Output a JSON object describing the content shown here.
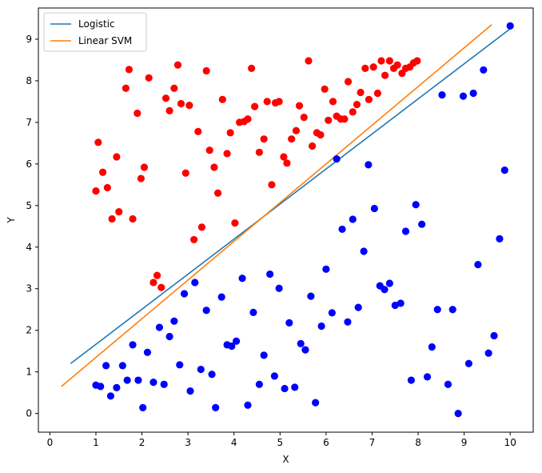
{
  "chart_data": {
    "type": "scatter",
    "xlabel": "X",
    "ylabel": "Y",
    "xlim": [
      -0.25,
      10.5
    ],
    "ylim": [
      -0.45,
      9.75
    ],
    "xticks": [
      0,
      1,
      2,
      3,
      4,
      5,
      6,
      7,
      8,
      9,
      10
    ],
    "yticks": [
      0,
      1,
      2,
      3,
      4,
      5,
      6,
      7,
      8,
      9
    ],
    "grid": false,
    "legend_position": "top-left",
    "lines": [
      {
        "name": "Logistic",
        "color": "#1f77b4",
        "x": [
          0.45,
          10.0
        ],
        "y": [
          1.2,
          9.25
        ]
      },
      {
        "name": "Linear SVM",
        "color": "#ff7f0e",
        "x": [
          0.25,
          9.6
        ],
        "y": [
          0.65,
          9.35
        ]
      }
    ],
    "scatter": [
      {
        "color": "#ff0000",
        "points": [
          [
            1.0,
            5.35
          ],
          [
            1.05,
            6.52
          ],
          [
            1.15,
            5.8
          ],
          [
            1.25,
            5.43
          ],
          [
            1.35,
            4.68
          ],
          [
            1.45,
            6.17
          ],
          [
            1.5,
            4.85
          ],
          [
            1.65,
            7.82
          ],
          [
            1.72,
            8.27
          ],
          [
            1.8,
            4.68
          ],
          [
            1.9,
            7.22
          ],
          [
            1.98,
            5.65
          ],
          [
            2.05,
            5.92
          ],
          [
            2.15,
            8.07
          ],
          [
            2.25,
            3.15
          ],
          [
            2.33,
            3.32
          ],
          [
            2.42,
            3.03
          ],
          [
            2.52,
            7.58
          ],
          [
            2.6,
            7.28
          ],
          [
            2.7,
            7.82
          ],
          [
            2.78,
            8.38
          ],
          [
            2.85,
            7.45
          ],
          [
            2.95,
            5.78
          ],
          [
            3.03,
            7.41
          ],
          [
            3.13,
            4.18
          ],
          [
            3.22,
            6.78
          ],
          [
            3.3,
            4.48
          ],
          [
            3.4,
            8.24
          ],
          [
            3.47,
            6.33
          ],
          [
            3.57,
            5.92
          ],
          [
            3.65,
            5.3
          ],
          [
            3.75,
            7.55
          ],
          [
            3.85,
            6.25
          ],
          [
            3.92,
            6.75
          ],
          [
            4.02,
            4.58
          ],
          [
            4.12,
            7.0
          ],
          [
            4.22,
            7.02
          ],
          [
            4.3,
            7.08
          ],
          [
            4.38,
            8.3
          ],
          [
            4.45,
            7.38
          ],
          [
            4.55,
            6.28
          ],
          [
            4.65,
            6.6
          ],
          [
            4.72,
            7.5
          ],
          [
            4.82,
            5.5
          ],
          [
            4.9,
            7.47
          ],
          [
            4.98,
            7.5
          ],
          [
            5.08,
            6.17
          ],
          [
            5.15,
            6.02
          ],
          [
            5.25,
            6.6
          ],
          [
            5.35,
            6.8
          ],
          [
            5.42,
            7.4
          ],
          [
            5.52,
            7.12
          ],
          [
            5.62,
            8.48
          ],
          [
            5.7,
            6.43
          ],
          [
            5.8,
            6.75
          ],
          [
            5.88,
            6.7
          ],
          [
            5.97,
            7.8
          ],
          [
            6.05,
            7.05
          ],
          [
            6.15,
            7.5
          ],
          [
            6.23,
            7.15
          ],
          [
            6.32,
            7.08
          ],
          [
            6.4,
            7.08
          ],
          [
            6.48,
            7.98
          ],
          [
            6.58,
            7.25
          ],
          [
            6.67,
            7.43
          ],
          [
            6.75,
            7.72
          ],
          [
            6.85,
            8.3
          ],
          [
            6.93,
            7.55
          ],
          [
            7.03,
            8.33
          ],
          [
            7.12,
            7.7
          ],
          [
            7.2,
            8.48
          ],
          [
            7.28,
            8.13
          ],
          [
            7.38,
            8.48
          ],
          [
            7.47,
            8.3
          ],
          [
            7.55,
            8.38
          ],
          [
            7.65,
            8.18
          ],
          [
            7.73,
            8.3
          ],
          [
            7.82,
            8.33
          ],
          [
            7.9,
            8.43
          ],
          [
            7.98,
            8.48
          ]
        ]
      },
      {
        "color": "#0000ff",
        "points": [
          [
            1.0,
            0.68
          ],
          [
            1.1,
            0.65
          ],
          [
            1.22,
            1.15
          ],
          [
            1.32,
            0.42
          ],
          [
            1.45,
            0.62
          ],
          [
            1.58,
            1.15
          ],
          [
            1.68,
            0.8
          ],
          [
            1.8,
            1.65
          ],
          [
            1.92,
            0.8
          ],
          [
            2.02,
            0.14
          ],
          [
            2.12,
            1.47
          ],
          [
            2.25,
            0.75
          ],
          [
            2.38,
            2.07
          ],
          [
            2.48,
            0.7
          ],
          [
            2.6,
            1.85
          ],
          [
            2.7,
            2.22
          ],
          [
            2.82,
            1.17
          ],
          [
            2.92,
            2.88
          ],
          [
            3.05,
            0.54
          ],
          [
            3.15,
            3.15
          ],
          [
            3.28,
            1.06
          ],
          [
            3.4,
            2.48
          ],
          [
            3.52,
            0.94
          ],
          [
            3.6,
            0.14
          ],
          [
            3.73,
            2.8
          ],
          [
            3.85,
            1.65
          ],
          [
            3.95,
            1.62
          ],
          [
            4.05,
            1.74
          ],
          [
            4.18,
            3.25
          ],
          [
            4.3,
            0.2
          ],
          [
            4.42,
            2.43
          ],
          [
            4.55,
            0.7
          ],
          [
            4.65,
            1.4
          ],
          [
            4.78,
            3.35
          ],
          [
            4.88,
            0.9
          ],
          [
            4.98,
            3.01
          ],
          [
            5.1,
            0.6
          ],
          [
            5.2,
            2.18
          ],
          [
            5.32,
            0.63
          ],
          [
            5.45,
            1.68
          ],
          [
            5.55,
            1.53
          ],
          [
            5.67,
            2.82
          ],
          [
            5.77,
            0.26
          ],
          [
            5.9,
            2.1
          ],
          [
            6.0,
            3.47
          ],
          [
            6.13,
            2.42
          ],
          [
            6.23,
            6.12
          ],
          [
            6.35,
            4.43
          ],
          [
            6.47,
            2.2
          ],
          [
            6.58,
            4.67
          ],
          [
            6.7,
            2.55
          ],
          [
            6.82,
            3.9
          ],
          [
            6.92,
            5.98
          ],
          [
            7.05,
            4.93
          ],
          [
            7.17,
            3.07
          ],
          [
            7.27,
            2.98
          ],
          [
            7.38,
            3.13
          ],
          [
            7.5,
            2.6
          ],
          [
            7.62,
            2.65
          ],
          [
            7.73,
            4.38
          ],
          [
            7.85,
            0.8
          ],
          [
            7.95,
            5.02
          ],
          [
            8.08,
            4.55
          ],
          [
            8.2,
            0.88
          ],
          [
            8.3,
            1.6
          ],
          [
            8.42,
            2.5
          ],
          [
            8.52,
            7.66
          ],
          [
            8.65,
            0.7
          ],
          [
            8.75,
            2.5
          ],
          [
            8.87,
            0.0
          ],
          [
            8.98,
            7.63
          ],
          [
            9.1,
            1.2
          ],
          [
            9.2,
            7.7
          ],
          [
            9.3,
            3.58
          ],
          [
            9.42,
            8.26
          ],
          [
            9.53,
            1.45
          ],
          [
            9.65,
            1.87
          ],
          [
            9.77,
            4.2
          ],
          [
            9.88,
            5.85
          ],
          [
            10.0,
            9.32
          ]
        ]
      }
    ]
  }
}
